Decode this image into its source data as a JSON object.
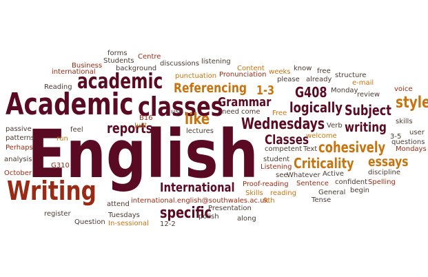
{
  "words": {
    "english": "English",
    "academic_cap": "Academic",
    "writing_cap": "Writing",
    "academic": "academic",
    "classes": "classes",
    "referencing": "Referencing",
    "grammar": "Grammar",
    "one_three": "1-3",
    "g408": "G408",
    "logically": "logically",
    "subject": "Subject",
    "style": "style",
    "reports": "reports",
    "like": "like",
    "wednesdays": "Wednesdays",
    "writing": "writing",
    "specific": "specific",
    "international": "International",
    "classes_cap": "Classes",
    "cohesively": "cohesively",
    "criticality": "Criticality",
    "essays": "essays",
    "forms": "forms",
    "centre": "Centre",
    "business": "Business",
    "students": "Students",
    "background": "background",
    "discussions": "discussions",
    "listening": "listening",
    "international_lc": "international",
    "punctuation": "punctuation",
    "pronunciation": "Pronunciation",
    "content": "Content",
    "weeks": "weeks",
    "know": "know",
    "free": "free",
    "structure": "structure",
    "email": "e-mail",
    "please": "please",
    "already": "already",
    "review": "review",
    "voice": "voice",
    "reading": "Reading",
    "monday": "Monday",
    "b16": "B16",
    "use": "use",
    "need": "need",
    "come": "come",
    "free_cap": "Free",
    "skills": "skills",
    "just": "Just",
    "verb": "Verb",
    "passive": "passive",
    "feel": "feel",
    "lectures": "lectures",
    "user": "user",
    "perhaps": "Perhaps",
    "run": "run",
    "competent": "competent",
    "text": "Text",
    "three_five": "3-5",
    "mondays": "Mondays",
    "patterns": "patterns",
    "welcome": "welcome",
    "questions": "questions",
    "analysis": "analysis",
    "g310": "G310",
    "student": "student",
    "listening_cap": "Listening",
    "october": "October",
    "see": "see",
    "whatever": "Whatever",
    "active": "Active",
    "discipline": "discipline",
    "sentence": "Sentence",
    "confident": "confident",
    "spelling": "Spelling",
    "general": "General",
    "begin": "begin",
    "proofreading": "Proof-reading",
    "skills_cap": "Skills",
    "reading_lc": "reading",
    "tense": "Tense",
    "attend": "attend",
    "email_address": "international.english@southwales.ac.uk",
    "nine_th": "9th",
    "register": "register",
    "tuesdays": "Tuesdays",
    "presentation": "Presentation",
    "question": "Question",
    "polish": "polish",
    "along": "along",
    "in_sessional": "In-sessional",
    "twelve_two": "12-2"
  }
}
